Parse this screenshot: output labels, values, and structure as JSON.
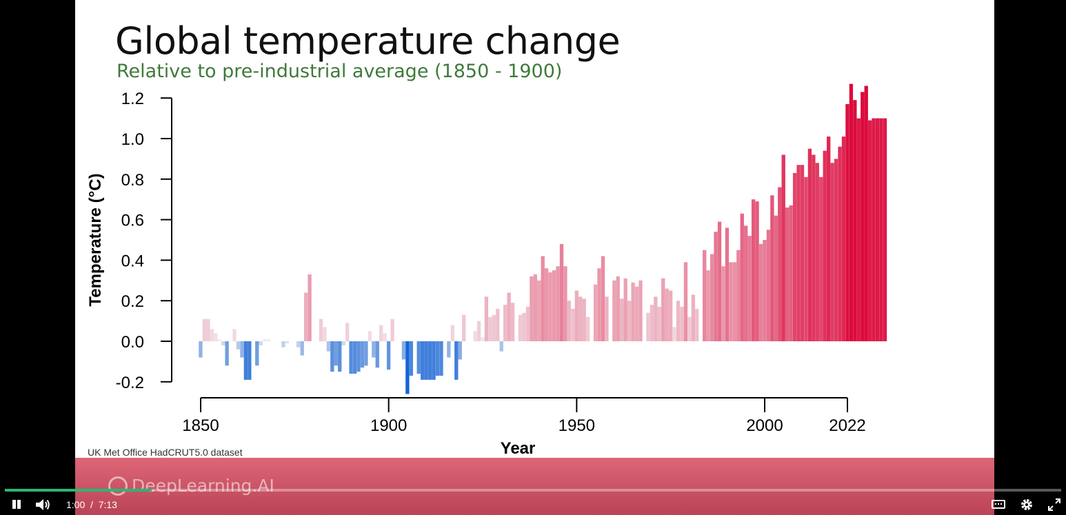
{
  "slide": {
    "title": "Global temperature change",
    "subtitle": "Relative to pre-industrial average (1850 - 1900)",
    "source": "UK Met Office HadCRUT5.0 dataset",
    "brand": "DeepLearning.AI"
  },
  "player": {
    "current_time": "1:00",
    "separator": "/",
    "duration": "7:13",
    "progress_fraction": 0.139
  },
  "chart_data": {
    "type": "bar",
    "title": "",
    "xlabel": "Year",
    "ylabel": "Temperature (°C)",
    "x_ticks": [
      1850,
      1900,
      1950,
      2000,
      2022
    ],
    "y_ticks": [
      "1.2",
      "1.0",
      "0.8",
      "0.6",
      "0.4",
      "0.2",
      "0.0",
      "-0.2"
    ],
    "ylim": [
      -0.26,
      1.26
    ],
    "xlim": [
      1850,
      2022
    ],
    "colors": {
      "cool": "#1464d6",
      "warm": "#dc0a3c",
      "neutral": "#f2eef0"
    },
    "years_start": 1850,
    "values": [
      -0.08,
      0.11,
      0.11,
      0.06,
      0.04,
      0.01,
      -0.02,
      -0.12,
      0.0,
      0.06,
      -0.04,
      -0.08,
      -0.19,
      -0.19,
      0.0,
      -0.12,
      -0.02,
      0.01,
      0.01,
      0.0,
      0.0,
      0.0,
      -0.03,
      -0.01,
      0.0,
      0.0,
      -0.03,
      -0.07,
      0.24,
      0.33,
      0.0,
      0.0,
      0.11,
      0.07,
      -0.05,
      -0.15,
      -0.12,
      -0.15,
      -0.02,
      0.09,
      -0.16,
      -0.16,
      -0.15,
      -0.13,
      -0.12,
      0.05,
      -0.08,
      -0.13,
      0.08,
      0.04,
      -0.14,
      0.11,
      0.0,
      0.0,
      -0.09,
      -0.26,
      -0.17,
      0.0,
      -0.16,
      -0.19,
      -0.19,
      -0.19,
      -0.19,
      -0.17,
      -0.17,
      0.0,
      -0.08,
      0.08,
      -0.19,
      -0.09,
      0.13,
      0.0,
      0.0,
      0.05,
      0.1,
      0.02,
      0.22,
      0.12,
      0.13,
      0.16,
      -0.05,
      0.18,
      0.24,
      0.19,
      0.0,
      0.13,
      0.14,
      0.17,
      0.32,
      0.33,
      0.3,
      0.42,
      0.36,
      0.34,
      0.35,
      0.37,
      0.48,
      0.37,
      0.2,
      0.16,
      0.25,
      0.22,
      0.21,
      0.12,
      0.0,
      0.28,
      0.36,
      0.42,
      0.22,
      0.0,
      0.3,
      0.32,
      0.21,
      0.31,
      0.2,
      0.29,
      0.27,
      0.3,
      0.0,
      0.14,
      0.18,
      0.22,
      0.17,
      0.31,
      0.26,
      0.25,
      0.07,
      0.2,
      0.17,
      0.39,
      0.12,
      0.23,
      0.16,
      0.0,
      0.45,
      0.35,
      0.43,
      0.54,
      0.59,
      0.37,
      0.56,
      0.39,
      0.39,
      0.45,
      0.63,
      0.57,
      0.52,
      0.7,
      0.69,
      0.48,
      0.5,
      0.55,
      0.72,
      0.62,
      0.76,
      0.92,
      0.66,
      0.67,
      0.83,
      0.87,
      0.87,
      0.81,
      0.95,
      0.92,
      0.88,
      0.81,
      0.94,
      1.01,
      0.88,
      0.9,
      0.96,
      1.01,
      1.17,
      1.27,
      1.19,
      1.1,
      1.23,
      1.26,
      1.09,
      1.1,
      1.1,
      1.1,
      1.1
    ]
  }
}
